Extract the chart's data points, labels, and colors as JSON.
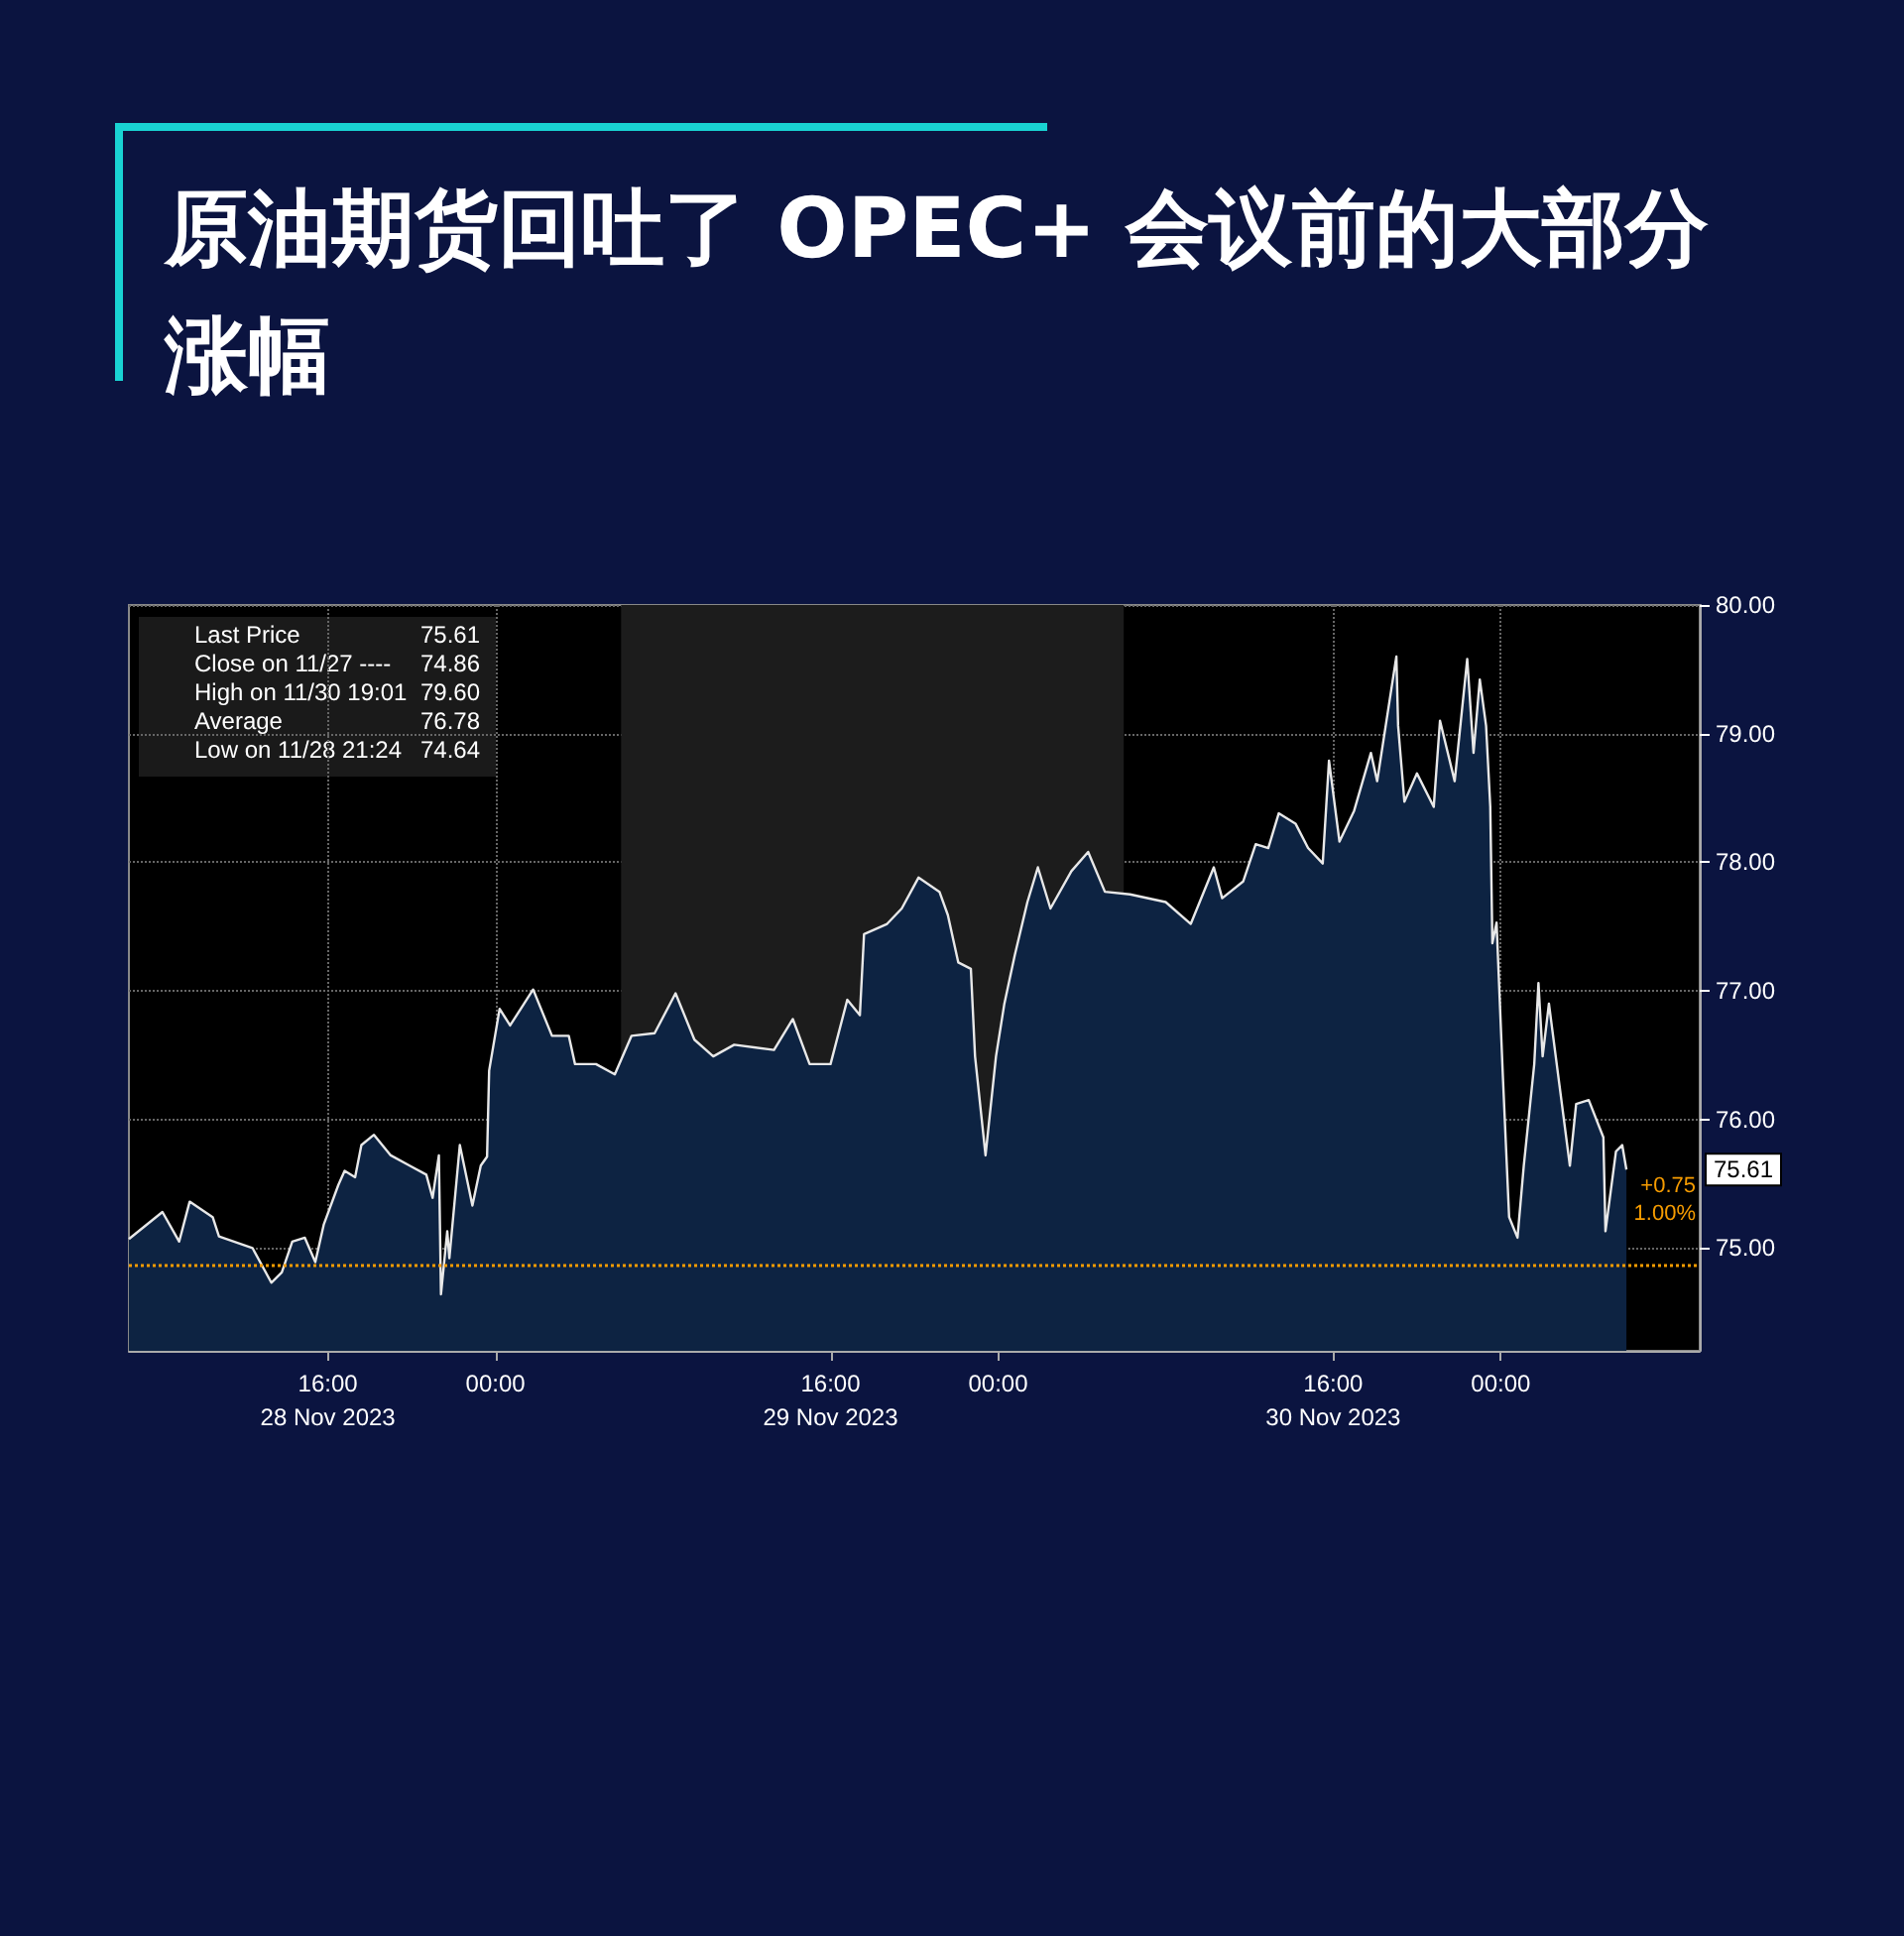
{
  "chart_data": {
    "type": "area",
    "title": "原油期货回吐了 OPEC+ 会议前的大部分涨幅",
    "x": [
      "2023-11-28T06:30",
      "2023-11-28T08:06",
      "2023-11-28T08:54",
      "2023-11-28T09:24",
      "2023-11-28T10:30",
      "2023-11-28T10:48",
      "2023-11-28T12:24",
      "2023-11-28T13:18",
      "2023-11-28T13:48",
      "2023-11-28T14:18",
      "2023-11-28T14:54",
      "2023-11-28T15:24",
      "2023-11-28T15:48",
      "2023-11-28T16:30",
      "2023-11-28T16:48",
      "2023-11-28T17:18",
      "2023-11-28T17:36",
      "2023-11-28T18:12",
      "2023-11-28T19:00",
      "2023-11-28T19:54",
      "2023-11-28T20:42",
      "2023-11-28T21:00",
      "2023-11-28T21:18",
      "2023-11-28T21:24",
      "2023-11-28T21:42",
      "2023-11-28T21:48",
      "2023-11-28T22:18",
      "2023-11-28T22:54",
      "2023-11-28T23:18",
      "2023-11-28T23:36",
      "2023-11-28T23:42",
      "2023-11-29T00:12",
      "2023-11-29T00:42",
      "2023-11-29T01:48",
      "2023-11-29T02:42",
      "2023-11-29T03:30",
      "2023-11-29T03:48",
      "2023-11-29T04:48",
      "2023-11-29T05:42",
      "2023-11-29T06:30",
      "2023-11-29T07:36",
      "2023-11-29T08:36",
      "2023-11-29T09:30",
      "2023-11-29T10:24",
      "2023-11-29T11:24",
      "2023-11-29T13:18",
      "2023-11-29T14:12",
      "2023-11-29T15:00",
      "2023-11-29T16:00",
      "2023-11-29T16:48",
      "2023-11-29T17:24",
      "2023-11-29T17:36",
      "2023-11-29T18:42",
      "2023-11-29T19:24",
      "2023-11-29T20:12",
      "2023-11-29T21:12",
      "2023-11-29T21:36",
      "2023-11-29T22:06",
      "2023-11-29T22:42",
      "2023-11-29T22:54",
      "2023-11-29T23:24",
      "2023-11-29T23:54",
      "2023-11-30T00:18",
      "2023-11-30T00:48",
      "2023-11-30T01:24",
      "2023-11-30T01:54",
      "2023-11-30T02:30",
      "2023-11-30T03:30",
      "2023-11-30T04:18",
      "2023-11-30T05:06",
      "2023-11-30T06:18",
      "2023-11-30T08:00",
      "2023-11-30T09:12",
      "2023-11-30T10:18",
      "2023-11-30T10:42",
      "2023-11-30T11:42",
      "2023-11-30T12:18",
      "2023-11-30T12:54",
      "2023-11-30T13:24",
      "2023-11-30T14:12",
      "2023-11-30T14:48",
      "2023-11-30T15:30",
      "2023-11-30T15:48",
      "2023-11-30T16:18",
      "2023-11-30T17:00",
      "2023-11-30T17:48",
      "2023-11-30T18:06",
      "2023-11-30T19:01",
      "2023-11-30T19:06",
      "2023-11-30T19:24",
      "2023-11-30T20:00",
      "2023-11-30T20:48",
      "2023-11-30T21:06",
      "2023-11-30T21:48",
      "2023-11-30T22:24",
      "2023-11-30T22:42",
      "2023-11-30T23:00",
      "2023-11-30T23:18",
      "2023-11-30T23:30",
      "2023-11-30T23:36",
      "2023-11-30T23:48",
      "2023-12-01T00:06",
      "2023-12-01T00:24",
      "2023-12-01T00:48",
      "2023-12-01T01:06",
      "2023-12-01T01:36",
      "2023-12-01T01:48",
      "2023-12-01T02:00",
      "2023-12-01T02:18",
      "2023-12-01T02:48",
      "2023-12-01T03:18",
      "2023-12-01T03:36",
      "2023-12-01T04:12",
      "2023-12-01T04:54",
      "2023-12-01T05:00",
      "2023-12-01T05:30",
      "2023-12-01T05:48",
      "2023-12-01T06:00"
    ],
    "series": [
      {
        "color": "#e8e8e8",
        "values": [
          75.07,
          75.28,
          75.05,
          75.36,
          75.24,
          75.09,
          75.0,
          74.73,
          74.81,
          75.05,
          75.08,
          74.89,
          75.18,
          75.49,
          75.6,
          75.55,
          75.8,
          75.88,
          75.72,
          75.64,
          75.57,
          75.39,
          75.72,
          74.64,
          75.13,
          74.92,
          75.8,
          75.33,
          75.64,
          75.71,
          76.38,
          76.86,
          76.73,
          77.01,
          76.65,
          76.65,
          76.43,
          76.43,
          76.35,
          76.65,
          76.67,
          76.98,
          76.62,
          76.49,
          76.58,
          76.54,
          76.78,
          76.43,
          76.43,
          76.93,
          76.81,
          77.44,
          77.52,
          77.64,
          77.88,
          77.77,
          77.59,
          77.22,
          77.17,
          76.49,
          75.72,
          76.49,
          76.9,
          77.28,
          77.69,
          77.96,
          77.64,
          77.93,
          78.08,
          77.77,
          77.75,
          77.69,
          77.52,
          77.96,
          77.72,
          77.85,
          78.14,
          78.11,
          78.38,
          78.3,
          78.11,
          77.99,
          78.79,
          78.16,
          78.4,
          78.85,
          78.63,
          79.6,
          79.06,
          78.47,
          78.69,
          78.43,
          79.1,
          78.63,
          79.58,
          78.85,
          79.42,
          79.06,
          78.43,
          77.37,
          77.53,
          76.34,
          75.24,
          75.08,
          75.64,
          76.43,
          77.06,
          76.49,
          76.9,
          76.27,
          75.64,
          76.12,
          76.15,
          75.86,
          75.13,
          75.75,
          75.8,
          75.61
        ]
      }
    ],
    "xlim": [
      "2023-11-28T06:30",
      "2023-12-01T09:30"
    ],
    "xticks": [
      {
        "value": "2023-11-28T16:00",
        "label": "16:00\n28 Nov 2023"
      },
      {
        "value": "2023-11-29T00:00",
        "label": "00:00"
      },
      {
        "value": "2023-11-29T16:00",
        "label": "16:00\n29 Nov 2023"
      },
      {
        "value": "2023-11-30T00:00",
        "label": "00:00"
      },
      {
        "value": "2023-11-30T16:00",
        "label": "16:00\n30 Nov 2023"
      },
      {
        "value": "2023-12-01T00:00",
        "label": "00:00"
      }
    ],
    "ylim": [
      74.2,
      80.0
    ],
    "yticks": [
      {
        "value": 75,
        "label": "75.00"
      },
      {
        "value": 76,
        "label": "76.00"
      },
      {
        "value": 77,
        "label": "77.00"
      },
      {
        "value": 78,
        "label": "78.00"
      },
      {
        "value": 79,
        "label": "79.00"
      },
      {
        "value": 80,
        "label": "80.00"
      }
    ],
    "grid": true,
    "ref_lines": [
      {
        "axis": "y",
        "value": 74.86,
        "color": "#f59b00",
        "line_style": "dotted"
      }
    ],
    "bands": [
      {
        "axis": "x",
        "from": "2023-11-29T06:00",
        "to": "2023-11-30T06:00",
        "color": "#1c1c1c"
      }
    ],
    "annotations": [
      "Last Price",
      "75.61",
      "Close on 11/27 ----",
      "74.86",
      "High on 11/30 19:01",
      "79.60",
      "Average",
      "76.78",
      "Low on 11/28 21:24",
      "74.64",
      "75.61",
      "+0.75",
      "1.00%"
    ]
  }
}
